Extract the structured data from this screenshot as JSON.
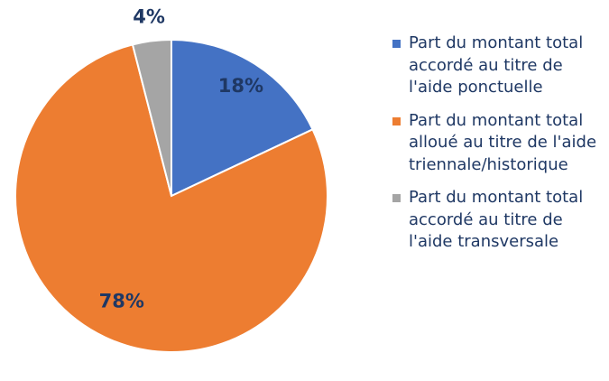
{
  "chart_data": {
    "type": "pie",
    "categories": [
      "Part du montant total accordé au titre de l'aide ponctuelle",
      "Part du montant total alloué au titre de l'aide triennale/historique",
      "Part du montant total accordé au titre de l'aide transversale"
    ],
    "values": [
      18,
      78,
      4
    ],
    "value_labels": [
      "18%",
      "78%",
      "4%"
    ],
    "colors": [
      "#4472c4",
      "#ed7d31",
      "#a5a5a5"
    ],
    "legend": "right"
  }
}
